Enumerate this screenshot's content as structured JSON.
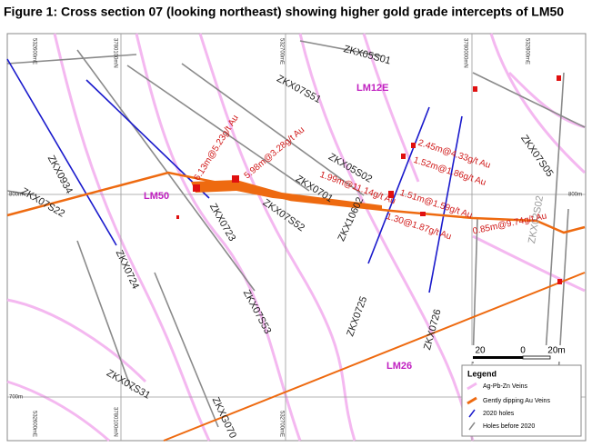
{
  "title": "Figure 1:  Cross section 07 (looking northeast) showing higher gold grade intercepts of LM50",
  "grid_labels": [
    "532600mE",
    "3780100mN",
    "532700mE",
    "3780000mN",
    "532800mE",
    "532600mE",
    "3780100mN",
    "532700mE",
    "800m",
    "800m",
    "700m"
  ],
  "holes": [
    "ZKX05S01",
    "ZKX07S51",
    "ZKX0934",
    "ZKX07S22",
    "ZKX0723",
    "ZKX07S52",
    "ZKX05S02",
    "ZKX0701",
    "ZKX0724",
    "ZKX07S53",
    "ZKX07S31",
    "ZKXG070",
    "ZKX10602",
    "ZKX0725",
    "ZKX0726",
    "ZKX07S05",
    "ZKX02S02"
  ],
  "veins": [
    "LM12E",
    "LM50",
    "LM26"
  ],
  "intercepts": [
    "6.13m@5.23g/t Au",
    "5.98m@3.28g/t Au",
    "1.99m@11.14g/t Au",
    "2.45m@4.33g/t Au",
    "1.52m@1.86g/t Au",
    "1.51m@1.59g/t Au",
    "1.30@1.87g/t Au",
    "0.85m@9.74g/t Au"
  ],
  "scale": [
    "20",
    "0",
    "20m"
  ],
  "legend": {
    "title": "Legend",
    "items": [
      "Ag-Pb-Zn Veins",
      "Gently dipping Au Veins",
      "2020 holes",
      "Holes before 2020"
    ]
  }
}
